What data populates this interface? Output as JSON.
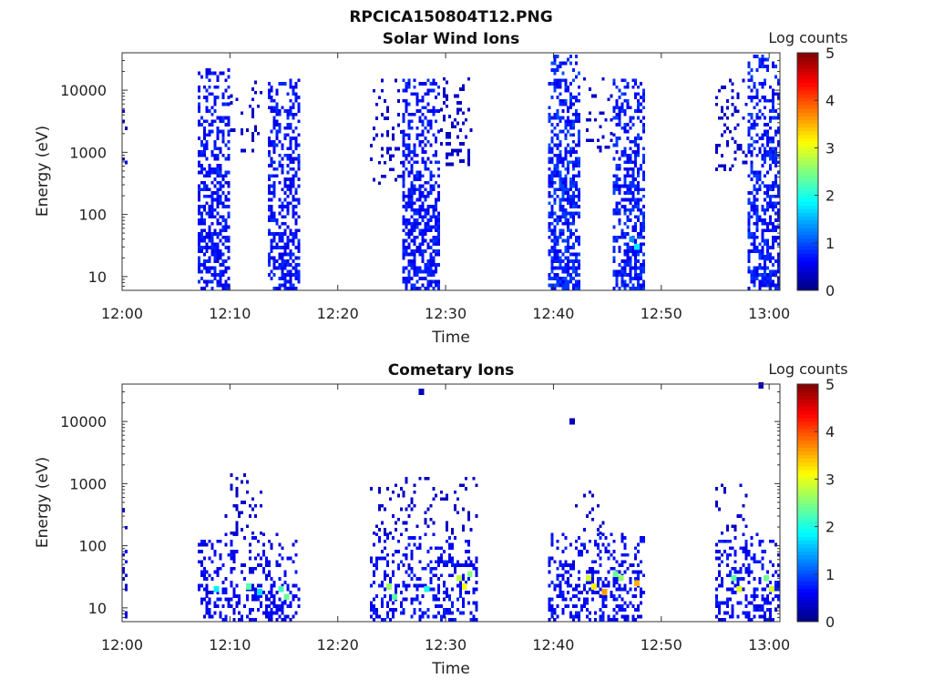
{
  "figure_title": "RPCICA150804T12.PNG",
  "chart_data": [
    {
      "type": "heatmap",
      "title": "Solar Wind Ions",
      "xlabel": "Time",
      "ylabel": "Energy (eV)",
      "y_scale": "log",
      "ylim": [
        6,
        40000
      ],
      "xlim": [
        "12:00",
        "13:01"
      ],
      "x_ticks": [
        "12:00",
        "12:10",
        "12:20",
        "12:30",
        "12:40",
        "12:50",
        "13:00"
      ],
      "y_ticks": [
        "10",
        "100",
        "1000",
        "10000"
      ],
      "colorbar": {
        "label": "Log counts",
        "range": [
          0,
          5
        ],
        "ticks": [
          "0",
          "1",
          "2",
          "3",
          "4",
          "5"
        ],
        "colormap": "jet"
      },
      "grid": false,
      "bursts": [
        {
          "start": "12:00:00",
          "end": "12:00:30",
          "e_min": 500,
          "e_max": 4500,
          "density": 0.22,
          "level": 0.2
        },
        {
          "start": "12:07:00",
          "end": "12:10:00",
          "e_min": 6,
          "e_max": 22000,
          "density": 0.55,
          "level": 0.5
        },
        {
          "start": "12:10:00",
          "end": "12:13:00",
          "e_min": 1000,
          "e_max": 15000,
          "density": 0.12,
          "level": 0.2
        },
        {
          "start": "12:13:30",
          "end": "12:16:30",
          "e_min": 6,
          "e_max": 15000,
          "density": 0.55,
          "level": 0.5
        },
        {
          "start": "12:23:00",
          "end": "12:26:00",
          "e_min": 300,
          "e_max": 15000,
          "density": 0.2,
          "level": 0.2
        },
        {
          "start": "12:26:00",
          "end": "12:29:30",
          "e_min": 6,
          "e_max": 15000,
          "density": 0.55,
          "level": 0.5
        },
        {
          "start": "12:29:30",
          "end": "12:32:30",
          "e_min": 600,
          "e_max": 15000,
          "density": 0.22,
          "level": 0.2
        },
        {
          "start": "12:39:30",
          "end": "12:42:30",
          "e_min": 6,
          "e_max": 35000,
          "density": 0.6,
          "level": 0.6
        },
        {
          "start": "12:42:30",
          "end": "12:45:30",
          "e_min": 1000,
          "e_max": 15000,
          "density": 0.15,
          "level": 0.2
        },
        {
          "start": "12:45:30",
          "end": "12:48:30",
          "e_min": 6,
          "e_max": 15000,
          "density": 0.55,
          "level": 0.55
        },
        {
          "start": "12:55:00",
          "end": "12:58:00",
          "e_min": 500,
          "e_max": 15000,
          "density": 0.2,
          "level": 0.2
        },
        {
          "start": "12:58:00",
          "end": "13:01:00",
          "e_min": 6,
          "e_max": 35000,
          "density": 0.55,
          "level": 0.55
        }
      ],
      "hot_spots": [
        {
          "time": "12:47:30",
          "energy": 30,
          "value": 1.8
        },
        {
          "time": "12:47:00",
          "energy": 40,
          "value": 1.3
        },
        {
          "time": "12:41:00",
          "energy": 7,
          "value": 0.9
        },
        {
          "time": "12:59:30",
          "energy": 20,
          "value": 0.8
        }
      ]
    },
    {
      "type": "heatmap",
      "title": "Cometary Ions",
      "xlabel": "Time",
      "ylabel": "Energy (eV)",
      "y_scale": "log",
      "ylim": [
        6,
        40000
      ],
      "xlim": [
        "12:00",
        "13:01"
      ],
      "x_ticks": [
        "12:00",
        "12:10",
        "12:20",
        "12:30",
        "12:40",
        "12:50",
        "13:00"
      ],
      "y_ticks": [
        "10",
        "100",
        "1000",
        "10000"
      ],
      "colorbar": {
        "label": "Log counts",
        "range": [
          0,
          5
        ],
        "ticks": [
          "0",
          "1",
          "2",
          "3",
          "4",
          "5"
        ],
        "colormap": "jet"
      },
      "grid": false,
      "bursts": [
        {
          "start": "12:00:00",
          "end": "12:00:30",
          "e_min": 6,
          "e_max": 400,
          "density": 0.3,
          "level": 0.3
        },
        {
          "start": "12:07:00",
          "end": "12:16:30",
          "e_min": 6,
          "e_max": 150,
          "density": 0.35,
          "level": 0.4
        },
        {
          "start": "12:09:30",
          "end": "12:13:00",
          "e_min": 150,
          "e_max": 1300,
          "density": 0.15,
          "level": 0.2
        },
        {
          "start": "12:23:00",
          "end": "12:33:00",
          "e_min": 6,
          "e_max": 150,
          "density": 0.35,
          "level": 0.45
        },
        {
          "start": "12:23:00",
          "end": "12:33:00",
          "e_min": 150,
          "e_max": 1200,
          "density": 0.12,
          "level": 0.2
        },
        {
          "start": "12:39:30",
          "end": "12:48:30",
          "e_min": 6,
          "e_max": 150,
          "density": 0.35,
          "level": 0.45
        },
        {
          "start": "12:42:00",
          "end": "12:45:00",
          "e_min": 150,
          "e_max": 900,
          "density": 0.12,
          "level": 0.2
        },
        {
          "start": "12:55:00",
          "end": "13:01:00",
          "e_min": 6,
          "e_max": 150,
          "density": 0.35,
          "level": 0.45
        },
        {
          "start": "12:55:00",
          "end": "12:58:00",
          "e_min": 150,
          "e_max": 900,
          "density": 0.12,
          "level": 0.2
        }
      ],
      "hot_spots": [
        {
          "time": "12:08:30",
          "energy": 20,
          "value": 1.8
        },
        {
          "time": "12:11:30",
          "energy": 22,
          "value": 2.3
        },
        {
          "time": "12:12:30",
          "energy": 18,
          "value": 1.7
        },
        {
          "time": "12:14:30",
          "energy": 20,
          "value": 2.2
        },
        {
          "time": "12:15:00",
          "energy": 15,
          "value": 2.4
        },
        {
          "time": "12:24:30",
          "energy": 22,
          "value": 2.6
        },
        {
          "time": "12:25:00",
          "energy": 15,
          "value": 2.3
        },
        {
          "time": "12:28:00",
          "energy": 20,
          "value": 2.0
        },
        {
          "time": "12:31:00",
          "energy": 30,
          "value": 2.8
        },
        {
          "time": "12:31:30",
          "energy": 22,
          "value": 3.1
        },
        {
          "time": "12:32:00",
          "energy": 35,
          "value": 2.5
        },
        {
          "time": "12:43:00",
          "energy": 30,
          "value": 2.9
        },
        {
          "time": "12:43:30",
          "energy": 22,
          "value": 3.2
        },
        {
          "time": "12:44:30",
          "energy": 18,
          "value": 3.6
        },
        {
          "time": "12:45:30",
          "energy": 35,
          "value": 2.4
        },
        {
          "time": "12:46:00",
          "energy": 30,
          "value": 2.6
        },
        {
          "time": "12:47:30",
          "energy": 25,
          "value": 3.5
        },
        {
          "time": "12:56:30",
          "energy": 30,
          "value": 2.3
        },
        {
          "time": "12:57:00",
          "energy": 20,
          "value": 3.0
        },
        {
          "time": "12:59:30",
          "energy": 30,
          "value": 2.4
        },
        {
          "time": "13:00:00",
          "energy": 20,
          "value": 2.9
        },
        {
          "time": "12:27:30",
          "energy": 30000,
          "value": 0.3
        },
        {
          "time": "12:41:30",
          "energy": 10000,
          "value": 0.3
        },
        {
          "time": "12:59:00",
          "energy": 38000,
          "value": 0.3
        }
      ]
    }
  ]
}
